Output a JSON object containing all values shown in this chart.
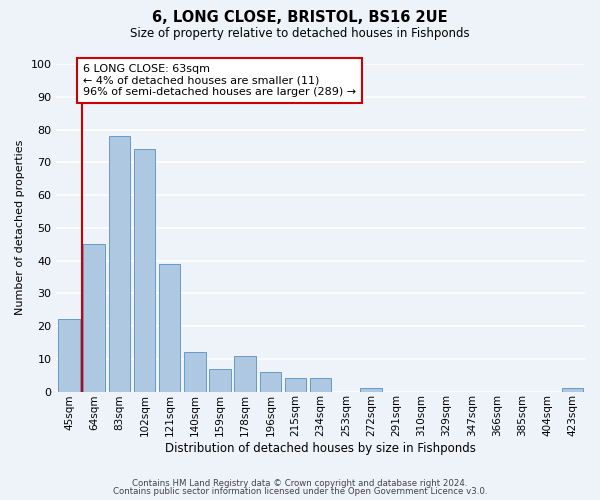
{
  "title": "6, LONG CLOSE, BRISTOL, BS16 2UE",
  "subtitle": "Size of property relative to detached houses in Fishponds",
  "xlabel": "Distribution of detached houses by size in Fishponds",
  "ylabel": "Number of detached properties",
  "bar_labels": [
    "45sqm",
    "64sqm",
    "83sqm",
    "102sqm",
    "121sqm",
    "140sqm",
    "159sqm",
    "178sqm",
    "196sqm",
    "215sqm",
    "234sqm",
    "253sqm",
    "272sqm",
    "291sqm",
    "310sqm",
    "329sqm",
    "347sqm",
    "366sqm",
    "385sqm",
    "404sqm",
    "423sqm"
  ],
  "bar_values": [
    22,
    45,
    78,
    74,
    39,
    12,
    7,
    11,
    6,
    4,
    4,
    0,
    1,
    0,
    0,
    0,
    0,
    0,
    0,
    0,
    1
  ],
  "bar_color": "#adc8e0",
  "bar_edge_color": "#6699cc",
  "marker_color": "#cc0000",
  "annotation_text": "6 LONG CLOSE: 63sqm\n← 4% of detached houses are smaller (11)\n96% of semi-detached houses are larger (289) →",
  "annotation_box_color": "#ffffff",
  "annotation_box_edge_color": "#cc0000",
  "ylim": [
    0,
    100
  ],
  "yticks": [
    0,
    10,
    20,
    30,
    40,
    50,
    60,
    70,
    80,
    90,
    100
  ],
  "background_color": "#eef2f9",
  "grid_color": "#ffffff",
  "footer_line1": "Contains HM Land Registry data © Crown copyright and database right 2024.",
  "footer_line2": "Contains public sector information licensed under the Open Government Licence v3.0."
}
